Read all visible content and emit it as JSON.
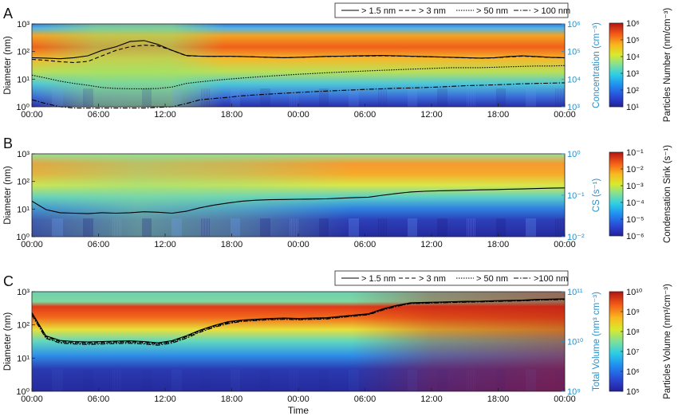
{
  "chart_data": [
    {
      "type": "heatmap",
      "panel_label": "A",
      "xlabel": "",
      "ylabel": "Diameter (nm)",
      "y2label": "Concentration (cm⁻³)",
      "colorbar_label": "Particles Number (nm/cm⁻³)",
      "y_ticks": [
        "10⁰",
        "10¹",
        "10²",
        "10³"
      ],
      "y2_ticks": [
        "10³",
        "10⁴",
        "10⁵",
        "10⁶"
      ],
      "colorbar_ticks": [
        "10¹",
        "10²",
        "10³",
        "10⁴",
        "10⁵",
        "10⁶"
      ],
      "legend": [
        "> 1.5 nm",
        "> 3 nm",
        "> 50 nm",
        "> 100 nm"
      ],
      "ylim": [
        1,
        1000
      ],
      "y2lim": [
        1000,
        1000000
      ],
      "series": [
        {
          "name": "> 1.5 nm",
          "style": "solid",
          "y2_values": [
            60000,
            58000,
            55000,
            60000,
            70000,
            110000,
            150000,
            230000,
            250000,
            180000,
            110000,
            72000,
            68000,
            67000,
            68000,
            66000,
            64000,
            62000,
            60000,
            62000,
            64000,
            67000,
            68000,
            70000,
            71000,
            72000,
            70000,
            68000,
            66000,
            64000,
            62000,
            60000,
            58000,
            60000,
            66000,
            70000,
            66000,
            62000,
            60000
          ]
        },
        {
          "name": "> 3 nm",
          "style": "dashed",
          "y2_values": [
            52000,
            48000,
            43000,
            40000,
            44000,
            70000,
            110000,
            150000,
            170000,
            160000,
            110000,
            70000,
            68000,
            67000,
            67000,
            66000,
            64000,
            62000,
            60000,
            62000,
            64000,
            66000,
            67000,
            68000,
            69000,
            70000,
            69000,
            67000,
            65000,
            63000,
            61000,
            59000,
            57000,
            59000,
            64000,
            68000,
            65000,
            61000,
            59000
          ]
        },
        {
          "name": "> 50 nm",
          "style": "dotted",
          "y2_values": [
            14000,
            11000,
            8500,
            7000,
            6000,
            5000,
            4600,
            4500,
            4500,
            4600,
            5200,
            7000,
            8000,
            9000,
            10000,
            11000,
            12000,
            13000,
            14000,
            15000,
            16000,
            17000,
            18000,
            19000,
            20000,
            21000,
            22000,
            23000,
            24000,
            25000,
            26000,
            26000,
            26000,
            27000,
            28000,
            29000,
            30000,
            30000,
            31000
          ]
        },
        {
          "name": "> 100 nm",
          "style": "dashdot",
          "y2_values": [
            1800,
            1300,
            1000,
            900,
            900,
            900,
            900,
            900,
            900,
            950,
            1000,
            1300,
            1800,
            2000,
            2200,
            2500,
            2700,
            2900,
            3100,
            3300,
            3500,
            3700,
            3900,
            4100,
            4300,
            4500,
            4700,
            4800,
            5000,
            5200,
            5500,
            5800,
            6000,
            6200,
            6500,
            6800,
            7000,
            7200,
            7400
          ]
        }
      ]
    },
    {
      "type": "heatmap",
      "panel_label": "B",
      "xlabel": "",
      "ylabel": "Diameter (nm)",
      "y2label": "CS (s⁻¹)",
      "colorbar_label": "Condensation Sink (s⁻¹)",
      "y_ticks": [
        "10⁰",
        "10¹",
        "10²",
        "10³"
      ],
      "y2_ticks": [
        "10⁻²",
        "10⁻¹",
        "10⁰"
      ],
      "colorbar_ticks": [
        "10⁻⁶",
        "10⁻⁵",
        "10⁻⁴",
        "10⁻³",
        "10⁻²",
        "10⁻¹"
      ],
      "legend": [],
      "ylim": [
        1,
        1000
      ],
      "y2lim": [
        0.01,
        1
      ],
      "series": [
        {
          "name": "CS",
          "style": "solid",
          "y2_values": [
            0.072,
            0.045,
            0.038,
            0.037,
            0.036,
            0.038,
            0.037,
            0.038,
            0.04,
            0.039,
            0.037,
            0.041,
            0.05,
            0.058,
            0.065,
            0.072,
            0.076,
            0.078,
            0.079,
            0.08,
            0.081,
            0.082,
            0.085,
            0.088,
            0.09,
            0.1,
            0.11,
            0.12,
            0.125,
            0.128,
            0.13,
            0.132,
            0.135,
            0.137,
            0.14,
            0.142,
            0.145,
            0.148,
            0.15
          ]
        }
      ]
    },
    {
      "type": "heatmap",
      "panel_label": "C",
      "xlabel": "Time",
      "ylabel": "Diameter (nm)",
      "y2label": "Total Volume (nm³ cm⁻³)",
      "colorbar_label": "Particles Volume (nm³/cm⁻³)",
      "y_ticks": [
        "10⁰",
        "10¹",
        "10²",
        "10³"
      ],
      "y2_ticks": [
        "10⁹",
        "10¹⁰",
        "10¹¹"
      ],
      "colorbar_ticks": [
        "10⁵",
        "10⁶",
        "10⁷",
        "10⁸",
        "10⁹",
        "10¹⁰"
      ],
      "legend": [
        "> 1.5 nm",
        "> 3 nm",
        "> 50 nm",
        ">100 nm"
      ],
      "ylim": [
        1,
        1000
      ],
      "y2lim": [
        1000000000,
        100000000000
      ],
      "series": [
        {
          "name": "> 1.5 nm",
          "style": "solid",
          "y2_values": [
            38000000000,
            13000000000,
            10500000000,
            10000000000,
            9800000000,
            10000000000,
            10200000000,
            10300000000,
            10000000000,
            9400000000,
            10400000000,
            13000000000,
            17000000000,
            21000000000,
            25000000000,
            27000000000,
            28000000000,
            29000000000,
            29500000000,
            29000000000,
            29500000000,
            30000000000,
            32000000000,
            34000000000,
            36000000000,
            45000000000,
            53000000000,
            60000000000,
            61000000000,
            62000000000,
            63000000000,
            64000000000,
            64500000000,
            66000000000,
            67000000000,
            68000000000,
            70000000000,
            71000000000,
            72000000000
          ]
        },
        {
          "name": "> 3 nm",
          "style": "dashed",
          "y2_values": [
            37000000000,
            12500000000,
            10000000000,
            9600000000,
            9400000000,
            9600000000,
            9800000000,
            9900000000,
            9600000000,
            9100000000,
            10000000000,
            12500000000,
            16500000000,
            20500000000,
            24000000000,
            26500000000,
            27500000000,
            28500000000,
            29000000000,
            28500000000,
            29000000000,
            29500000000,
            31500000000,
            33500000000,
            35500000000,
            44000000000,
            52000000000,
            59000000000,
            60000000000,
            61000000000,
            62000000000,
            63000000000,
            64000000000,
            65000000000,
            66000000000,
            67000000000,
            69000000000,
            70000000000,
            71000000000
          ]
        },
        {
          "name": "> 50 nm",
          "style": "dotted",
          "y2_values": [
            36000000000,
            12000000000,
            9700000000,
            9300000000,
            9100000000,
            9300000000,
            9500000000,
            9600000000,
            9300000000,
            8800000000,
            9700000000,
            12100000000,
            16000000000,
            20000000000,
            23500000000,
            26000000000,
            27000000000,
            28000000000,
            28500000000,
            28000000000,
            28500000000,
            29000000000,
            31000000000,
            33000000000,
            35000000000,
            43500000000,
            51500000000,
            58500000000,
            59500000000,
            60500000000,
            61500000000,
            62500000000,
            63500000000,
            64500000000,
            65500000000,
            66500000000,
            68500000000,
            69500000000,
            70500000000
          ]
        },
        {
          "name": ">100 nm",
          "style": "dashdot",
          "y2_values": [
            34000000000,
            11500000000,
            9300000000,
            8900000000,
            8700000000,
            8900000000,
            9100000000,
            9200000000,
            8900000000,
            8400000000,
            9300000000,
            11600000000,
            15400000000,
            19300000000,
            22800000000,
            25300000000,
            26300000000,
            27300000000,
            27800000000,
            27300000000,
            27800000000,
            28300000000,
            30300000000,
            32300000000,
            34300000000,
            42500000000,
            50500000000,
            57500000000,
            58500000000,
            59500000000,
            60500000000,
            61500000000,
            62500000000,
            63500000000,
            64500000000,
            65500000000,
            67500000000,
            68500000000,
            69500000000
          ]
        }
      ]
    }
  ],
  "x_ticks": [
    "00:00",
    "06:00",
    "12:00",
    "18:00",
    "00:00",
    "06:00",
    "12:00",
    "18:00",
    "00:00"
  ],
  "x_hours": [
    0,
    6,
    12,
    18,
    24,
    30,
    36,
    42,
    48
  ],
  "colors": {
    "axis_right": "#2a8fc8",
    "line": "#000000",
    "colormap": [
      "#23209a",
      "#2a48d6",
      "#1f8ef0",
      "#2ccde6",
      "#7ee09a",
      "#d9ea2c",
      "#f8b81e",
      "#f35a17",
      "#b11414"
    ]
  }
}
